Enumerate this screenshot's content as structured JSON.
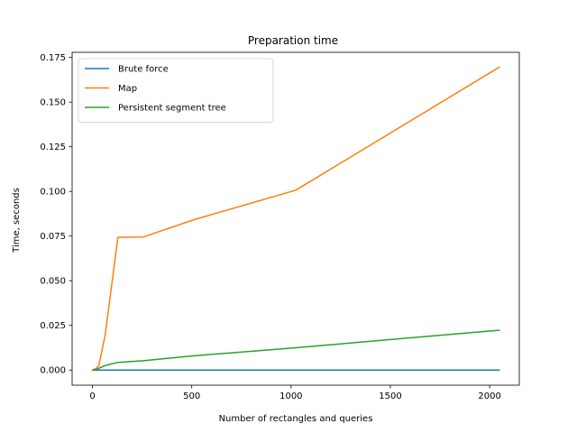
{
  "chart_data": {
    "type": "line",
    "title": "Preparation time",
    "xlabel": "Number of rectangles and queries",
    "ylabel": "Time, seconds",
    "xlim": [
      -102.35,
      2149.35
    ],
    "ylim": [
      -0.00847,
      0.17787
    ],
    "xticks": [
      0,
      500,
      1000,
      1500,
      2000
    ],
    "xtick_labels": [
      "0",
      "500",
      "1000",
      "1500",
      "2000"
    ],
    "yticks": [
      0.0,
      0.025,
      0.05,
      0.075,
      0.1,
      0.125,
      0.15,
      0.175
    ],
    "ytick_labels": [
      "0.000",
      "0.025",
      "0.050",
      "0.075",
      "0.100",
      "0.125",
      "0.150",
      "0.175"
    ],
    "grid": false,
    "legend_position": "upper-left",
    "series": [
      {
        "name": "Brute force",
        "color": "#1f77b4",
        "x": [
          1,
          2,
          4,
          8,
          16,
          32,
          64,
          128,
          256,
          512,
          1024,
          2048
        ],
        "y": [
          0,
          0,
          0,
          0,
          0,
          0,
          0,
          0,
          0,
          0,
          0,
          0
        ]
      },
      {
        "name": "Map",
        "color": "#ff7f0e",
        "x": [
          1,
          2,
          4,
          8,
          16,
          32,
          64,
          128,
          256,
          512,
          1024,
          2048
        ],
        "y": [
          0.0,
          0.0001,
          0.0002,
          0.0004,
          0.0008,
          0.0025,
          0.0195,
          0.0743,
          0.0745,
          0.0842,
          0.1007,
          0.1695
        ]
      },
      {
        "name": "Persistent segment tree",
        "color": "#2ca02c",
        "x": [
          1,
          2,
          4,
          8,
          16,
          32,
          64,
          128,
          256,
          512,
          1024,
          2048
        ],
        "y": [
          0.0,
          0.0,
          0.0001,
          0.0002,
          0.0004,
          0.001,
          0.0025,
          0.0043,
          0.0052,
          0.008,
          0.0125,
          0.0223
        ]
      }
    ]
  }
}
